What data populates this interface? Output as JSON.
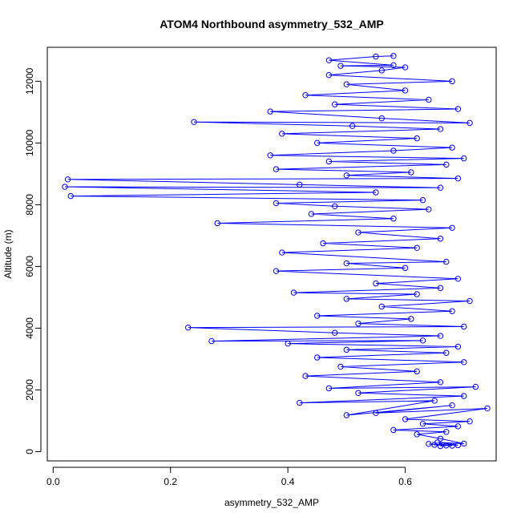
{
  "chart_data": {
    "type": "scatter",
    "title": "ATOM4 Northbound asymmetry_532_AMP",
    "xlabel": "asymmetry_532_AMP",
    "ylabel": "Altitude (m)",
    "xlim": [
      -0.01,
      0.755
    ],
    "ylim": [
      -300,
      13100
    ],
    "x_ticks": [
      0.0,
      0.2,
      0.4,
      0.6
    ],
    "x_tick_labels": [
      "0.0",
      "0.2",
      "0.4",
      "0.6"
    ],
    "y_ticks": [
      0,
      2000,
      4000,
      6000,
      8000,
      10000,
      12000
    ],
    "y_tick_labels": [
      "0",
      "2000",
      "4000",
      "6000",
      "8000",
      "10000",
      "12000"
    ],
    "grid": false,
    "legend": "none",
    "series": [
      {
        "color": "#0000ff",
        "marker": "open-circle",
        "connected": true,
        "points": [
          [
            0.66,
            180
          ],
          [
            0.67,
            200
          ],
          [
            0.65,
            220
          ],
          [
            0.68,
            190
          ],
          [
            0.64,
            250
          ],
          [
            0.69,
            210
          ],
          [
            0.655,
            300
          ],
          [
            0.7,
            260
          ],
          [
            0.66,
            420
          ],
          [
            0.62,
            560
          ],
          [
            0.67,
            640
          ],
          [
            0.58,
            700
          ],
          [
            0.69,
            820
          ],
          [
            0.63,
            900
          ],
          [
            0.71,
            980
          ],
          [
            0.6,
            1050
          ],
          [
            0.74,
            1400
          ],
          [
            0.55,
            1250
          ],
          [
            0.68,
            1500
          ],
          [
            0.5,
            1180
          ],
          [
            0.65,
            1650
          ],
          [
            0.42,
            1580
          ],
          [
            0.7,
            1800
          ],
          [
            0.52,
            1900
          ],
          [
            0.72,
            2100
          ],
          [
            0.47,
            2050
          ],
          [
            0.66,
            2250
          ],
          [
            0.43,
            2450
          ],
          [
            0.62,
            2600
          ],
          [
            0.49,
            2750
          ],
          [
            0.7,
            2900
          ],
          [
            0.45,
            3050
          ],
          [
            0.67,
            3200
          ],
          [
            0.5,
            3300
          ],
          [
            0.69,
            3400
          ],
          [
            0.4,
            3500
          ],
          [
            0.63,
            3600
          ],
          [
            0.27,
            3580
          ],
          [
            0.66,
            3750
          ],
          [
            0.48,
            3850
          ],
          [
            0.23,
            4020
          ],
          [
            0.7,
            4050
          ],
          [
            0.52,
            4150
          ],
          [
            0.61,
            4300
          ],
          [
            0.45,
            4400
          ],
          [
            0.68,
            4550
          ],
          [
            0.56,
            4700
          ],
          [
            0.71,
            4880
          ],
          [
            0.5,
            4950
          ],
          [
            0.62,
            5100
          ],
          [
            0.41,
            5150
          ],
          [
            0.66,
            5300
          ],
          [
            0.55,
            5450
          ],
          [
            0.69,
            5600
          ],
          [
            0.38,
            5850
          ],
          [
            0.6,
            5950
          ],
          [
            0.5,
            6100
          ],
          [
            0.67,
            6150
          ],
          [
            0.39,
            6450
          ],
          [
            0.62,
            6600
          ],
          [
            0.46,
            6750
          ],
          [
            0.66,
            6900
          ],
          [
            0.52,
            7100
          ],
          [
            0.68,
            7250
          ],
          [
            0.28,
            7400
          ],
          [
            0.58,
            7550
          ],
          [
            0.44,
            7700
          ],
          [
            0.64,
            7850
          ],
          [
            0.48,
            7950
          ],
          [
            0.38,
            8050
          ],
          [
            0.63,
            8150
          ],
          [
            0.03,
            8280
          ],
          [
            0.55,
            8400
          ],
          [
            0.02,
            8580
          ],
          [
            0.66,
            8550
          ],
          [
            0.42,
            8650
          ],
          [
            0.025,
            8820
          ],
          [
            0.69,
            8850
          ],
          [
            0.5,
            8950
          ],
          [
            0.61,
            9050
          ],
          [
            0.38,
            9150
          ],
          [
            0.67,
            9300
          ],
          [
            0.47,
            9400
          ],
          [
            0.7,
            9500
          ],
          [
            0.37,
            9600
          ],
          [
            0.58,
            9750
          ],
          [
            0.68,
            9850
          ],
          [
            0.45,
            10000
          ],
          [
            0.62,
            10150
          ],
          [
            0.39,
            10300
          ],
          [
            0.66,
            10450
          ],
          [
            0.51,
            10550
          ],
          [
            0.24,
            10680
          ],
          [
            0.71,
            10650
          ],
          [
            0.56,
            10800
          ],
          [
            0.37,
            11020
          ],
          [
            0.69,
            11100
          ],
          [
            0.48,
            11250
          ],
          [
            0.64,
            11400
          ],
          [
            0.43,
            11550
          ],
          [
            0.6,
            11700
          ],
          [
            0.5,
            11900
          ],
          [
            0.68,
            12000
          ],
          [
            0.47,
            12200
          ],
          [
            0.56,
            12350
          ],
          [
            0.6,
            12450
          ],
          [
            0.49,
            12500
          ],
          [
            0.58,
            12520
          ],
          [
            0.47,
            12680
          ],
          [
            0.55,
            12800
          ],
          [
            0.58,
            12820
          ]
        ]
      }
    ]
  }
}
